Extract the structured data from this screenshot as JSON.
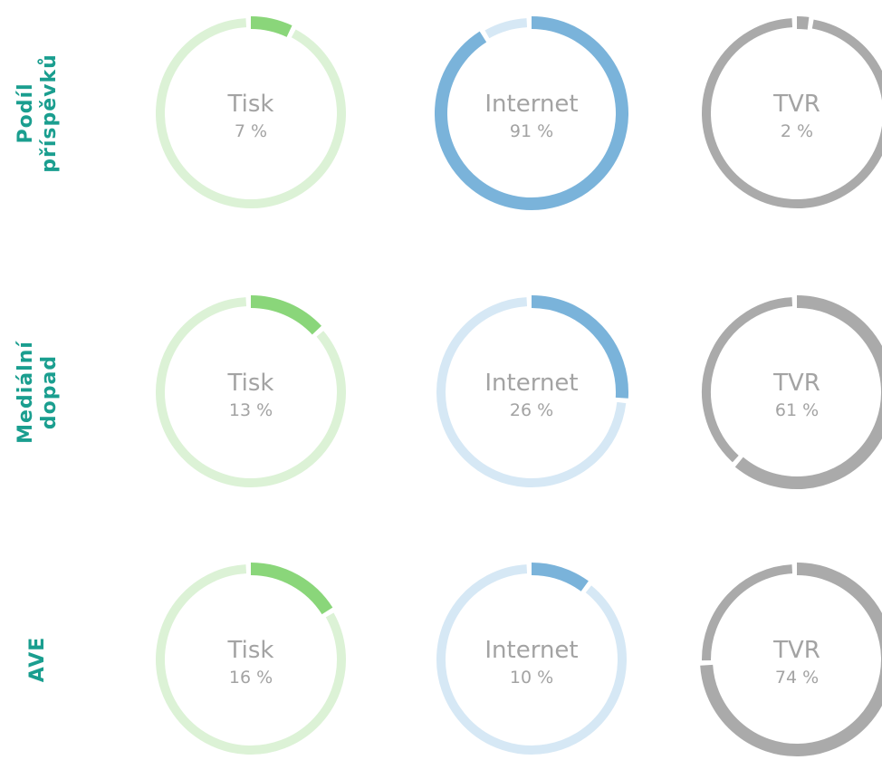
{
  "chart_data": [
    {
      "type": "donut",
      "title": "Podíl příspěvků",
      "categories": [
        "Tisk",
        "Internet",
        "TVR"
      ],
      "values": [
        7,
        91,
        2
      ],
      "value_labels": [
        "7 %",
        "91 %",
        "2 %"
      ],
      "colors": [
        "#8ad67a",
        "#7ab3da",
        "#aaaaaa"
      ],
      "track_colors": [
        "#dcf2d6",
        "#d6e8f5",
        "#aaaaaa"
      ]
    },
    {
      "type": "donut",
      "title": "Mediální dopad",
      "categories": [
        "Tisk",
        "Internet",
        "TVR"
      ],
      "values": [
        13,
        26,
        61
      ],
      "value_labels": [
        "13 %",
        "26 %",
        "61 %"
      ],
      "colors": [
        "#8ad67a",
        "#7ab3da",
        "#aaaaaa"
      ],
      "track_colors": [
        "#dcf2d6",
        "#d6e8f5",
        "#aaaaaa"
      ]
    },
    {
      "type": "donut",
      "title": "AVE",
      "categories": [
        "Tisk",
        "Internet",
        "TVR"
      ],
      "values": [
        16,
        10,
        74
      ],
      "value_labels": [
        "16 %",
        "10 %",
        "74 %"
      ],
      "colors": [
        "#8ad67a",
        "#7ab3da",
        "#aaaaaa"
      ],
      "track_colors": [
        "#dcf2d6",
        "#d6e8f5",
        "#aaaaaa"
      ]
    }
  ]
}
